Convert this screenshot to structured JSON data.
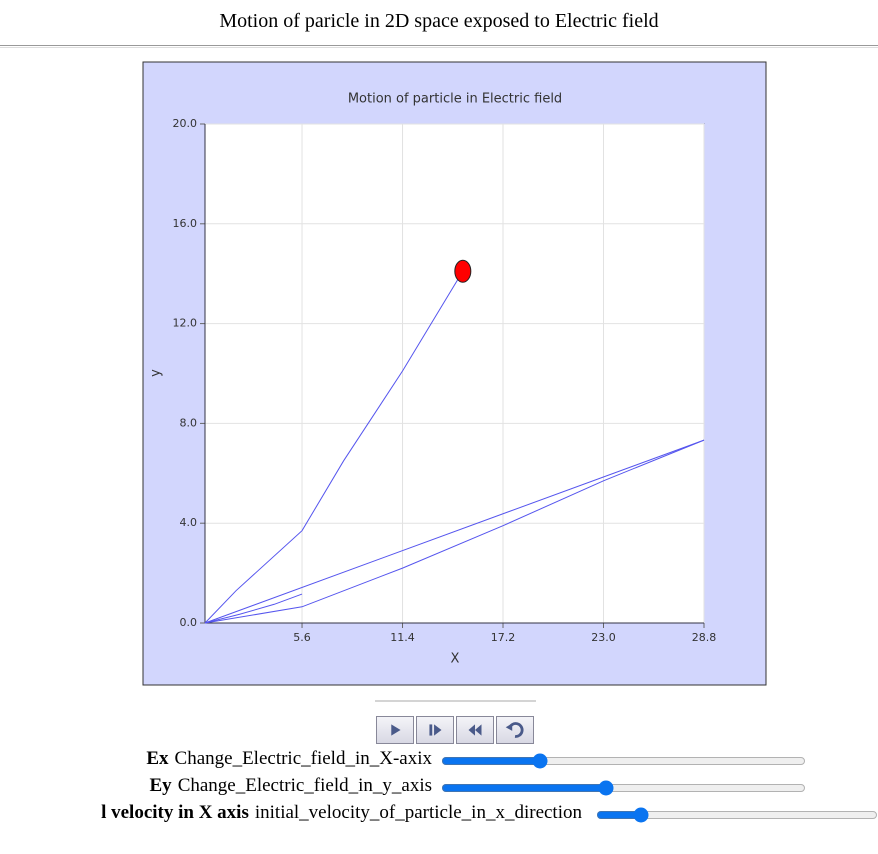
{
  "page_title": "Motion of paricle in 2D space exposed to Electric field",
  "chart_data": {
    "type": "line",
    "title": "Motion of particle in Electric field",
    "x_label": "X",
    "y_label": "y",
    "xlim": [
      0,
      28.8
    ],
    "ylim": [
      0,
      20
    ],
    "xticks": [
      5.6,
      11.4,
      17.2,
      {
        "value": 23,
        "label": "23.0"
      },
      28.8
    ],
    "yticks": [
      {
        "value": 0,
        "label": "0.0"
      },
      {
        "value": 4,
        "label": "4.0"
      },
      {
        "value": 8,
        "label": "8.0"
      },
      {
        "value": 12,
        "label": "12.0"
      },
      {
        "value": 16,
        "label": "16.0"
      },
      {
        "value": 20,
        "label": "20.0"
      }
    ],
    "grid": true,
    "series": [
      {
        "color": "#5555ee",
        "x": [
          0,
          2,
          4,
          5.6
        ],
        "values": [
          0,
          0.35,
          0.75,
          1.16
        ]
      },
      {
        "color": "#5555ee",
        "x": [
          0,
          28.8
        ],
        "values": [
          0,
          7.33
        ]
      },
      {
        "color": "#5555ee",
        "x": [
          0,
          5.6,
          11.4,
          17.2,
          23,
          28.8
        ],
        "values": [
          0,
          0.65,
          2.2,
          3.9,
          5.7,
          7.33
        ]
      },
      {
        "color": "#5555ee",
        "x": [
          0,
          1.8,
          5.6,
          8,
          11.4,
          14.88
        ],
        "values": [
          0,
          1.3,
          3.7,
          6.5,
          10.1,
          14.1
        ]
      }
    ],
    "marker": {
      "x": 14.88,
      "y": 14.1,
      "color": "#ff0000"
    }
  },
  "controls": [
    {
      "name": "Ex",
      "label": "Change_Electric_field_in_X-axix",
      "value": 26
    },
    {
      "name": "Ey",
      "label": "Change_Electric_field_in_y_axis",
      "value": 45
    },
    {
      "name": "l velocity in X axis",
      "label": "initial_velocity_of_particle_in_x_direction",
      "value": 14
    }
  ]
}
